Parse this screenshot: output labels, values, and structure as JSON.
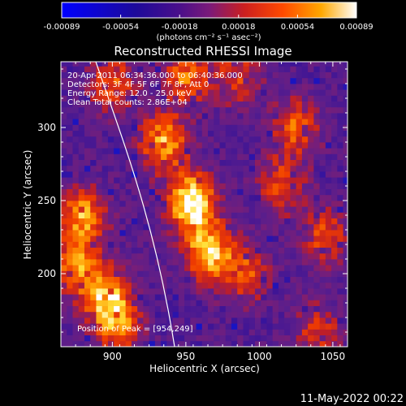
{
  "chart_data": {
    "type": "heatmap",
    "title": "Reconstructed RHESSI Image",
    "xlabel": "Heliocentric X (arcsec)",
    "ylabel": "Heliocentric Y (arcsec)",
    "xlim": [
      865,
      1060
    ],
    "ylim": [
      150,
      345
    ],
    "x_ticks": [
      900,
      950,
      1000,
      1050
    ],
    "y_ticks": [
      200,
      250,
      300
    ],
    "colorbar": {
      "ticks": [
        "-0.00089",
        "-0.00054",
        "-0.00018",
        "0.00018",
        "0.00054",
        "0.00089"
      ],
      "units": "(photons cm⁻² s⁻¹ asec⁻²)",
      "range": [
        -0.00089,
        0.00089
      ]
    },
    "annotations": [
      "20-Apr-2011 06:34:36.000 to 06:40:36.000",
      "Detectors: 3F 4F 5F 6F 7F 8F, Att 0",
      "Energy Range: 12.0 - 25.0 keV",
      "Clean    Total counts: 2.86E+04"
    ],
    "peak_label": "Position of Peak = [954,249]",
    "peak": [
      954,
      249
    ],
    "hot_regions": [
      {
        "x": 954,
        "y": 249,
        "level": 1.0
      },
      {
        "x": 935,
        "y": 290,
        "level": 0.75
      },
      {
        "x": 965,
        "y": 215,
        "level": 0.8
      },
      {
        "x": 990,
        "y": 200,
        "level": 0.55
      },
      {
        "x": 880,
        "y": 240,
        "level": 0.7
      },
      {
        "x": 895,
        "y": 185,
        "level": 0.7
      },
      {
        "x": 905,
        "y": 165,
        "level": 0.6
      },
      {
        "x": 875,
        "y": 205,
        "level": 0.6
      },
      {
        "x": 1025,
        "y": 300,
        "level": 0.55
      },
      {
        "x": 1015,
        "y": 260,
        "level": 0.5
      },
      {
        "x": 1045,
        "y": 225,
        "level": 0.5
      },
      {
        "x": 900,
        "y": 330,
        "level": 0.55
      },
      {
        "x": 950,
        "y": 335,
        "level": 0.6
      },
      {
        "x": 985,
        "y": 335,
        "level": 0.45
      },
      {
        "x": 1040,
        "y": 160,
        "level": 0.45
      }
    ]
  },
  "footer": {
    "date": "11-May-2022 00:22"
  }
}
